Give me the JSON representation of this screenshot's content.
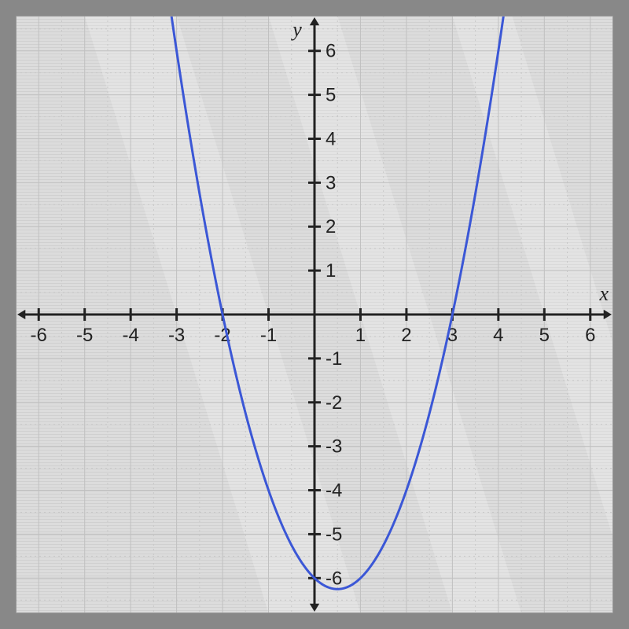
{
  "chart": {
    "type": "line",
    "background_color": "#dcdcdc",
    "grid_minor_color": "#c8c8c8",
    "grid_major_color": "#c0c0c0",
    "axis_color": "#222222",
    "xlim": [
      -6.5,
      6.5
    ],
    "ylim": [
      -6.8,
      6.8
    ],
    "xtick_step": 1,
    "ytick_step": 1,
    "x_ticks": [
      -6,
      -5,
      -4,
      -3,
      -2,
      -1,
      1,
      2,
      3,
      4,
      5,
      6
    ],
    "y_ticks": [
      -6,
      -5,
      -4,
      -3,
      -2,
      -1,
      1,
      2,
      3,
      4,
      5,
      6
    ],
    "x_axis_label": "x",
    "y_axis_label": "y",
    "tick_fontsize": 24,
    "axis_label_fontsize": 26,
    "series": {
      "type": "parabola",
      "color": "#3b57d6",
      "line_width": 3,
      "a": 1.0,
      "h": 0.5,
      "k": -6.25,
      "x_intercepts": [
        -2,
        3
      ],
      "vertex": [
        0.5,
        -6.25
      ]
    }
  }
}
